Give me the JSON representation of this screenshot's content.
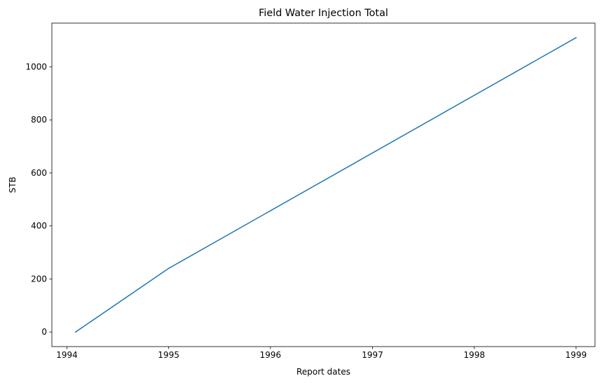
{
  "chart_data": {
    "type": "line",
    "title": "Field Water Injection Total",
    "xlabel": "Report dates",
    "ylabel": "STB",
    "x_ticks": [
      "1994",
      "1995",
      "1996",
      "1997",
      "1998",
      "1999"
    ],
    "y_ticks": [
      "0",
      "200",
      "400",
      "600",
      "800",
      "1000"
    ],
    "xlim": [
      "1993-11-08",
      "1999-03-10"
    ],
    "ylim": [
      -55,
      1165
    ],
    "grid": false,
    "series": [
      {
        "color": "#1f77b4",
        "points": [
          {
            "x": "1994-02-01",
            "y": 0
          },
          {
            "x": "1995-01-01",
            "y": 240
          },
          {
            "x": "1999-01-01",
            "y": 1110
          }
        ]
      }
    ]
  }
}
